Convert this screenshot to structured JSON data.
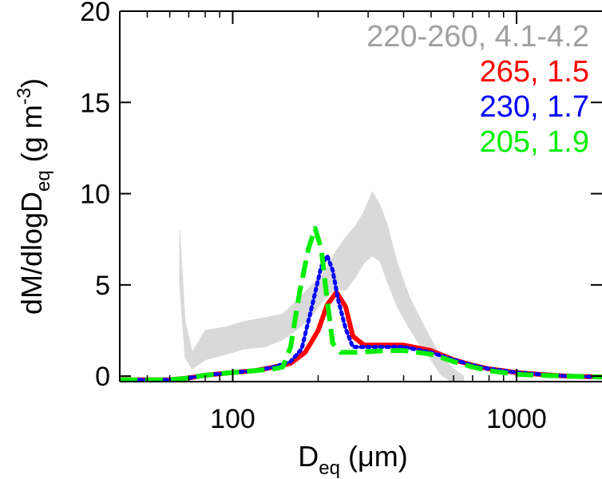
{
  "chart_data": {
    "type": "line",
    "x_scale": "log",
    "xlim": [
      40,
      2000
    ],
    "ylim": [
      -0.3,
      20
    ],
    "xlabel": {
      "main": "D",
      "sub": "eq",
      "unit": " (μm)"
    },
    "ylabel": {
      "main": "dM/dlogD",
      "sub": "eq",
      "unit_pre": " (g m",
      "sup": "-3",
      "unit_post": ")"
    },
    "x_ticks": [
      {
        "value": 100,
        "label": "100"
      },
      {
        "value": 1000,
        "label": "1000"
      }
    ],
    "y_ticks": [
      {
        "value": 0,
        "label": "0"
      },
      {
        "value": 5,
        "label": "5"
      },
      {
        "value": 10,
        "label": "10"
      },
      {
        "value": 15,
        "label": "15"
      },
      {
        "value": 20,
        "label": "20"
      }
    ],
    "grid": false,
    "legend_position": "top-right",
    "legend": [
      {
        "label": "220-260, 4.1-4.2",
        "color": "#a0a0a0"
      },
      {
        "label": "265, 1.5",
        "color": "#ff0000"
      },
      {
        "label": "230, 1.7",
        "color": "#0000ff"
      },
      {
        "label": "205, 1.9",
        "color": "#00ee00"
      }
    ],
    "band": {
      "color": "#d9d9d9",
      "x": [
        65,
        68,
        72,
        80,
        95,
        110,
        130,
        150,
        170,
        190,
        210,
        230,
        250,
        270,
        290,
        310,
        330,
        350,
        380,
        420,
        460,
        500,
        540,
        600,
        650
      ],
      "lower": [
        5.0,
        1.0,
        0.4,
        0.9,
        1.2,
        1.5,
        1.6,
        2.0,
        2.6,
        3.3,
        4.2,
        4.8,
        4.7,
        5.4,
        6.2,
        6.6,
        6.3,
        5.2,
        3.8,
        2.6,
        1.6,
        0.9,
        0.1,
        -0.4,
        -0.4
      ],
      "upper": [
        8.0,
        3.0,
        1.3,
        2.5,
        2.7,
        3.0,
        3.2,
        3.4,
        4.2,
        5.0,
        5.7,
        6.8,
        7.6,
        8.2,
        9.0,
        10.1,
        9.4,
        8.3,
        6.2,
        4.3,
        3.1,
        2.0,
        1.1,
        0.4,
        0.0
      ]
    },
    "series": [
      {
        "color": "#ff0000",
        "style": "solid",
        "width": 6,
        "x": [
          40,
          60,
          70,
          80,
          100,
          120,
          140,
          160,
          180,
          200,
          215,
          232,
          250,
          265,
          290,
          350,
          400,
          500,
          600,
          700,
          800,
          1000,
          1200,
          1500,
          2000
        ],
        "y": [
          -0.2,
          -0.2,
          -0.1,
          0.05,
          0.2,
          0.3,
          0.5,
          0.7,
          1.3,
          2.5,
          3.9,
          4.6,
          3.8,
          2.2,
          1.7,
          1.7,
          1.7,
          1.4,
          0.9,
          0.6,
          0.4,
          0.2,
          0.1,
          0.0,
          -0.05
        ]
      },
      {
        "color": "#0000ff",
        "style": "dotted",
        "width": 5,
        "x": [
          40,
          60,
          70,
          80,
          100,
          120,
          140,
          160,
          175,
          190,
          205,
          215,
          225,
          235,
          250,
          265,
          300,
          400,
          500,
          600,
          700,
          800,
          1000,
          1200,
          1500,
          2000
        ],
        "y": [
          -0.2,
          -0.2,
          -0.1,
          0.05,
          0.2,
          0.3,
          0.5,
          0.8,
          1.5,
          3.8,
          6.0,
          6.6,
          5.8,
          4.2,
          2.6,
          1.6,
          1.6,
          1.6,
          1.3,
          0.9,
          0.6,
          0.4,
          0.2,
          0.1,
          0.0,
          -0.05
        ]
      },
      {
        "color": "#00ee00",
        "style": "dashed",
        "width": 6,
        "x": [
          40,
          60,
          70,
          80,
          100,
          120,
          140,
          150,
          160,
          172,
          185,
          195,
          205,
          215,
          225,
          240,
          270,
          350,
          400,
          500,
          600,
          700,
          800,
          1000,
          1200,
          1500,
          2000
        ],
        "y": [
          -0.2,
          -0.2,
          -0.1,
          0.05,
          0.2,
          0.3,
          0.4,
          0.5,
          1.6,
          4.6,
          7.0,
          8.1,
          7.0,
          4.2,
          1.8,
          1.3,
          1.3,
          1.4,
          1.4,
          1.2,
          0.8,
          0.5,
          0.3,
          0.1,
          0.05,
          0.0,
          -0.05
        ]
      }
    ]
  }
}
